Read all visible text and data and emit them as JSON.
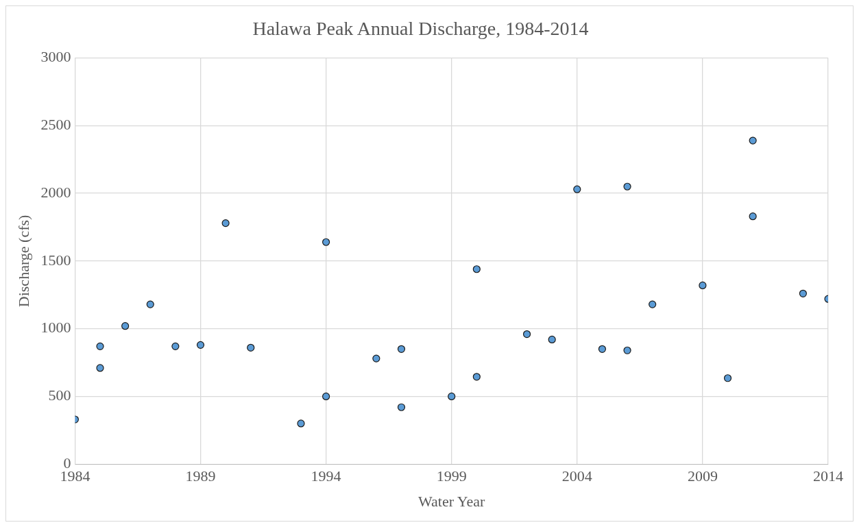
{
  "chart_data": {
    "type": "scatter",
    "title": "Halawa Peak Annual Discharge, 1984-2014",
    "xlabel": "Water Year",
    "ylabel": "Discharge (cfs)",
    "x": [
      1984,
      1985,
      1985,
      1986,
      1987,
      1988,
      1989,
      1990,
      1991,
      1993,
      1994,
      1994,
      1996,
      1997,
      1997,
      1999,
      2000,
      2000,
      2002,
      2003,
      2004,
      2005,
      2006,
      2006,
      2007,
      2009,
      2010,
      2011,
      2011,
      2013,
      2014
    ],
    "series": [
      {
        "color": "#5b9bd5",
        "values": [
          330,
          870,
          710,
          1020,
          1180,
          870,
          880,
          1780,
          860,
          300,
          1640,
          500,
          780,
          850,
          420,
          500,
          1440,
          645,
          960,
          920,
          2030,
          850,
          2050,
          840,
          1180,
          1320,
          635,
          2390,
          1830,
          1260,
          1220
        ]
      }
    ],
    "xlim": [
      1984,
      2014
    ],
    "xticks": [
      1984,
      1989,
      1994,
      1999,
      2004,
      2009,
      2014
    ],
    "ylim": [
      0,
      3000
    ],
    "yticks": [
      0,
      500,
      1000,
      1500,
      2000,
      2500,
      3000
    ],
    "grid": true,
    "legend": false,
    "marker": "circle"
  }
}
